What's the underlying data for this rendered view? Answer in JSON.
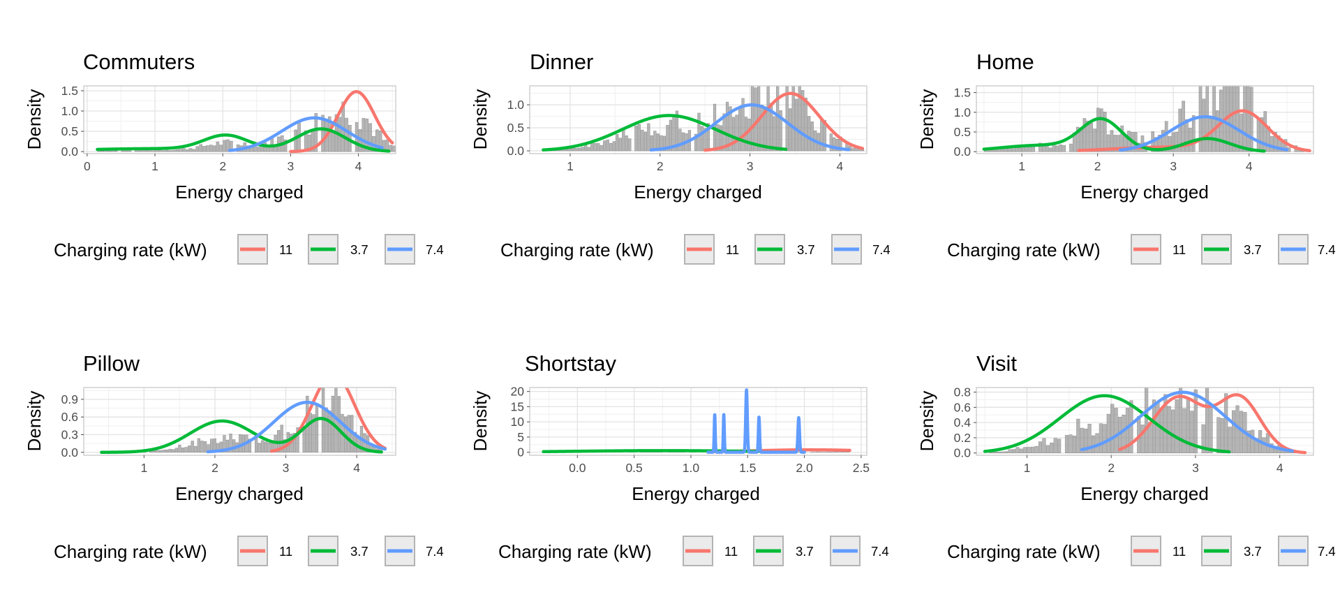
{
  "figure": {
    "legend_title": "Charging rate (kW)",
    "panels": [
      {
        "title": "Commuters"
      },
      {
        "title": "Dinner"
      },
      {
        "title": "Home"
      },
      {
        "title": "Pillow"
      },
      {
        "title": "Shortstay"
      },
      {
        "title": "Visit"
      }
    ]
  },
  "chart_data": [
    {
      "type": "histogram with density curves",
      "title": "Commuters",
      "xlabel": "Energy charged",
      "ylabel": "Density",
      "xlim": [
        -0.05,
        4.55
      ],
      "ylim": [
        -0.05,
        1.62
      ],
      "x_ticks": [
        0,
        1,
        2,
        3,
        4
      ],
      "x_tick_labels": [
        "0",
        "1",
        "2",
        "3",
        "4"
      ],
      "y_ticks": [
        0,
        0.5,
        1,
        1.5
      ],
      "y_tick_labels": [
        "0.0",
        "0.5",
        "1.0",
        "1.5"
      ],
      "grid": true,
      "legend": {
        "title": "Charging rate (kW)",
        "position": "bottom",
        "entries": [
          "11",
          "3.7",
          "7.4"
        ]
      },
      "series": [
        {
          "name": "11",
          "color": "#F8766D",
          "range": [
            3.0,
            4.5
          ],
          "components": [
            {
              "weight": 1.0,
              "mean": 3.97,
              "sd": 0.27
            }
          ]
        },
        {
          "name": "3.7",
          "color": "#00BA38",
          "range": [
            0.15,
            4.45
          ],
          "components": [
            {
              "weight": 0.2,
              "mean": 1.0,
              "sd": 1.1
            },
            {
              "weight": 0.3,
              "mean": 2.05,
              "sd": 0.33
            },
            {
              "weight": 0.5,
              "mean": 3.45,
              "sd": 0.36
            }
          ]
        },
        {
          "name": "7.4",
          "color": "#619CFF",
          "range": [
            2.1,
            4.35
          ],
          "components": [
            {
              "weight": 1.0,
              "mean": 3.35,
              "sd": 0.48
            }
          ]
        }
      ],
      "histogram": {
        "color": "#999999",
        "bin_width": 0.05,
        "range": [
          0.15,
          4.55
        ],
        "max_density": 1.05
      }
    },
    {
      "type": "histogram with density curves",
      "title": "Dinner",
      "xlabel": "Energy charged",
      "ylabel": "Density",
      "xlim": [
        0.55,
        4.3
      ],
      "ylim": [
        -0.06,
        1.41
      ],
      "x_ticks": [
        1,
        2,
        3,
        4
      ],
      "x_tick_labels": [
        "1",
        "2",
        "3",
        "4"
      ],
      "y_ticks": [
        0,
        0.5,
        1
      ],
      "y_tick_labels": [
        "0.0",
        "0.5",
        "1.0"
      ],
      "grid": true,
      "legend": {
        "title": "Charging rate (kW)",
        "position": "bottom",
        "entries": [
          "11",
          "3.7",
          "7.4"
        ]
      },
      "series": [
        {
          "name": "11",
          "color": "#F8766D",
          "range": [
            2.5,
            4.25
          ],
          "components": [
            {
              "weight": 1.0,
              "mean": 3.45,
              "sd": 0.32
            }
          ]
        },
        {
          "name": "3.7",
          "color": "#00BA38",
          "range": [
            0.7,
            3.4
          ],
          "components": [
            {
              "weight": 1.0,
              "mean": 2.1,
              "sd": 0.52
            }
          ]
        },
        {
          "name": "7.4",
          "color": "#619CFF",
          "range": [
            1.9,
            4.1
          ],
          "components": [
            {
              "weight": 1.0,
              "mean": 3.02,
              "sd": 0.4
            }
          ]
        }
      ],
      "histogram": {
        "color": "#999999",
        "bin_width": 0.035,
        "range": [
          0.7,
          4.25
        ],
        "max_density": 1.35
      }
    },
    {
      "type": "histogram with density curves",
      "title": "Home",
      "xlabel": "Energy charged",
      "ylabel": "Density",
      "xlim": [
        0.4,
        4.85
      ],
      "ylim": [
        -0.05,
        1.67
      ],
      "x_ticks": [
        1,
        2,
        3,
        4
      ],
      "x_tick_labels": [
        "1",
        "2",
        "3",
        "4"
      ],
      "y_ticks": [
        0,
        0.5,
        1,
        1.5
      ],
      "y_tick_labels": [
        "0.0",
        "0.5",
        "1.0",
        "1.5"
      ],
      "grid": true,
      "legend": {
        "title": "Charging rate (kW)",
        "position": "bottom",
        "entries": [
          "11",
          "3.7",
          "7.4"
        ]
      },
      "series": [
        {
          "name": "11",
          "color": "#F8766D",
          "range": [
            1.75,
            4.8
          ],
          "components": [
            {
              "weight": 0.2,
              "mean": 2.9,
              "sd": 0.7
            },
            {
              "weight": 0.8,
              "mean": 3.92,
              "sd": 0.32
            }
          ]
        },
        {
          "name": "3.7",
          "color": "#00BA38",
          "range": [
            0.5,
            4.2
          ],
          "components": [
            {
              "weight": 0.22,
              "mean": 1.25,
              "sd": 0.55
            },
            {
              "weight": 0.53,
              "mean": 2.05,
              "sd": 0.27
            },
            {
              "weight": 0.25,
              "mean": 3.45,
              "sd": 0.3
            }
          ]
        },
        {
          "name": "7.4",
          "color": "#619CFF",
          "range": [
            2.3,
            4.5
          ],
          "components": [
            {
              "weight": 1.0,
              "mean": 3.42,
              "sd": 0.45
            }
          ]
        }
      ],
      "histogram": {
        "color": "#999999",
        "bin_width": 0.045,
        "range": [
          0.5,
          4.7
        ],
        "max_density": 1.55
      }
    },
    {
      "type": "histogram with density curves",
      "title": "Pillow",
      "xlabel": "Energy charged",
      "ylabel": "Density",
      "xlim": [
        0.15,
        4.55
      ],
      "ylim": [
        -0.05,
        1.1
      ],
      "x_ticks": [
        1,
        2,
        3,
        4
      ],
      "x_tick_labels": [
        "1",
        "2",
        "3",
        "4"
      ],
      "y_ticks": [
        0,
        0.3,
        0.6,
        0.9
      ],
      "y_tick_labels": [
        "0.0",
        "0.3",
        "0.6",
        "0.9"
      ],
      "grid": true,
      "legend": {
        "title": "Charging rate (kW)",
        "position": "bottom",
        "entries": [
          "11",
          "3.7",
          "7.4"
        ]
      },
      "series": [
        {
          "name": "11",
          "color": "#F8766D",
          "range": [
            2.8,
            4.4
          ],
          "components": [
            {
              "weight": 1.0,
              "mean": 3.67,
              "sd": 0.3
            }
          ]
        },
        {
          "name": "3.7",
          "color": "#00BA38",
          "range": [
            0.4,
            4.35
          ],
          "components": [
            {
              "weight": 0.6,
              "mean": 2.1,
              "sd": 0.45
            },
            {
              "weight": 0.4,
              "mean": 3.5,
              "sd": 0.28
            }
          ]
        },
        {
          "name": "7.4",
          "color": "#619CFF",
          "range": [
            1.9,
            4.4
          ],
          "components": [
            {
              "weight": 1.0,
              "mean": 3.3,
              "sd": 0.47
            }
          ]
        }
      ],
      "histogram": {
        "color": "#999999",
        "bin_width": 0.045,
        "range": [
          0.4,
          4.4
        ],
        "max_density": 1.0
      }
    },
    {
      "type": "histogram with density curves",
      "title": "Shortstay",
      "xlabel": "Energy charged",
      "ylabel": "Density",
      "xlim": [
        -0.42,
        2.55
      ],
      "ylim": [
        -1.0,
        21.3
      ],
      "x_ticks": [
        0,
        0.5,
        1,
        1.5,
        2,
        2.5
      ],
      "x_tick_labels": [
        "0.0",
        "0.5",
        "1.0",
        "1.5",
        "2.0",
        "2.5"
      ],
      "y_ticks": [
        0,
        5,
        10,
        15,
        20
      ],
      "y_tick_labels": [
        "0",
        "5",
        "10",
        "15",
        "20"
      ],
      "grid": true,
      "legend": {
        "title": "Charging rate (kW)",
        "position": "bottom",
        "entries": [
          "11",
          "3.7",
          "7.4"
        ]
      },
      "series": [
        {
          "name": "11",
          "color": "#F8766D",
          "range": [
            1.2,
            2.4
          ],
          "components": [
            {
              "weight": 1.0,
              "mean": 2.05,
              "sd": 0.5
            }
          ]
        },
        {
          "name": "3.7",
          "color": "#00BA38",
          "range": [
            -0.3,
            1.6
          ],
          "components": [
            {
              "weight": 1.0,
              "mean": 0.75,
              "sd": 0.75
            }
          ]
        },
        {
          "name": "7.4",
          "color": "#619CFF",
          "range": [
            1.15,
            2.0
          ],
          "components": [
            {
              "weight": 0.14,
              "mean": 1.21,
              "sd": 0.0045
            },
            {
              "weight": 0.14,
              "mean": 1.29,
              "sd": 0.0045
            },
            {
              "weight": 0.36,
              "mean": 1.49,
              "sd": 0.007
            },
            {
              "weight": 0.16,
              "mean": 1.6,
              "sd": 0.0055
            },
            {
              "weight": 0.2,
              "mean": 1.95,
              "sd": 0.007
            }
          ]
        }
      ],
      "histogram": {
        "color": "#999999",
        "bin_width": 0.05,
        "range": [
          -0.3,
          2.4
        ],
        "max_density": 1.5
      }
    },
    {
      "type": "histogram with density curves",
      "title": "Visit",
      "xlabel": "Energy charged",
      "ylabel": "Density",
      "xlim": [
        0.4,
        4.4
      ],
      "ylim": [
        -0.03,
        0.86
      ],
      "x_ticks": [
        1,
        2,
        3,
        4
      ],
      "x_tick_labels": [
        "1",
        "2",
        "3",
        "4"
      ],
      "y_ticks": [
        0,
        0.2,
        0.4,
        0.6,
        0.8
      ],
      "y_tick_labels": [
        "0.0",
        "0.2",
        "0.4",
        "0.6",
        "0.8"
      ],
      "grid": true,
      "legend": {
        "title": "Charging rate (kW)",
        "position": "bottom",
        "entries": [
          "11",
          "3.7",
          "7.4"
        ]
      },
      "series": [
        {
          "name": "11",
          "color": "#F8766D",
          "range": [
            2.1,
            4.3
          ],
          "components": [
            {
              "weight": 0.55,
              "mean": 2.8,
              "sd": 0.3
            },
            {
              "weight": 0.45,
              "mean": 3.52,
              "sd": 0.25
            }
          ]
        },
        {
          "name": "3.7",
          "color": "#00BA38",
          "range": [
            0.5,
            3.4
          ],
          "components": [
            {
              "weight": 1.0,
              "mean": 1.92,
              "sd": 0.53
            }
          ]
        },
        {
          "name": "7.4",
          "color": "#619CFF",
          "range": [
            1.65,
            4.15
          ],
          "components": [
            {
              "weight": 1.0,
              "mean": 2.85,
              "sd": 0.5
            }
          ]
        }
      ],
      "histogram": {
        "color": "#999999",
        "bin_width": 0.045,
        "range": [
          0.55,
          4.25
        ],
        "max_density": 0.8
      }
    }
  ]
}
